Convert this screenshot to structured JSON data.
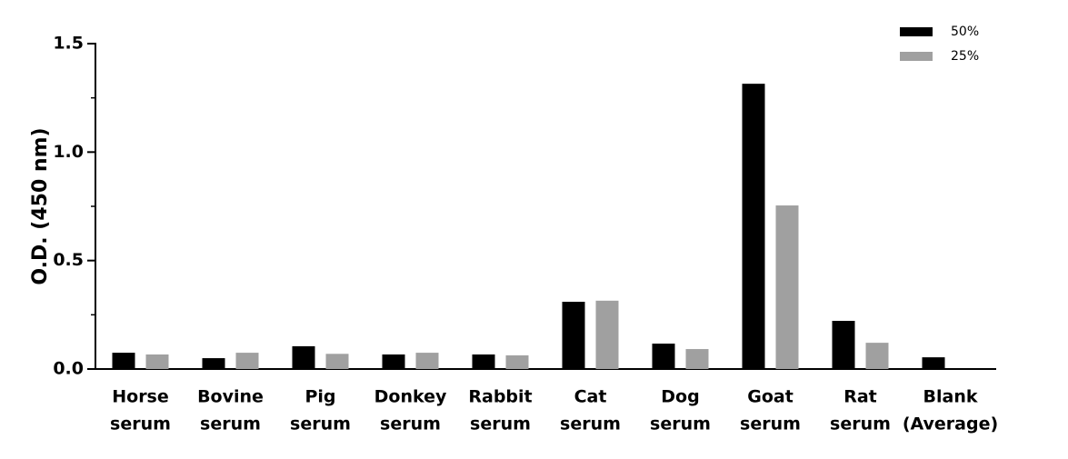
{
  "chart_data": {
    "type": "bar",
    "y_label": "O.D. (450 nm)",
    "categories": [
      [
        "Horse",
        "serum"
      ],
      [
        "Bovine",
        "serum"
      ],
      [
        "Pig",
        "serum"
      ],
      [
        "Donkey",
        "serum"
      ],
      [
        "Rabbit",
        "serum"
      ],
      [
        "Cat",
        "serum"
      ],
      [
        "Dog",
        "serum"
      ],
      [
        "Goat",
        "serum"
      ],
      [
        "Rat",
        "serum"
      ],
      [
        "Blank",
        "(Average)"
      ]
    ],
    "series": [
      {
        "name": "50%",
        "color": "#000000",
        "values": [
          0.075,
          0.05,
          0.105,
          0.067,
          0.067,
          0.31,
          0.117,
          1.315,
          0.222,
          0.054
        ]
      },
      {
        "name": "25%",
        "color": "#a0a0a0",
        "values": [
          0.067,
          0.075,
          0.07,
          0.075,
          0.063,
          0.315,
          0.092,
          0.754,
          0.121,
          null
        ]
      }
    ],
    "ylim": [
      0,
      1.5
    ],
    "yticks": [
      {
        "value": 0,
        "label": "0.0"
      },
      0.5,
      {
        "value": 1,
        "label": "1.0"
      },
      1.5
    ],
    "minor_yticks": [
      0.25,
      0.75,
      1.25
    ],
    "legend": "top-right"
  }
}
